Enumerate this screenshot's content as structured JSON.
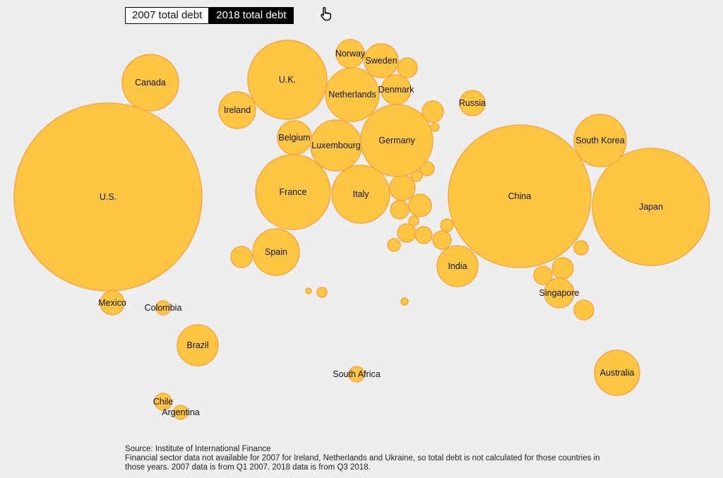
{
  "toggle": {
    "option_2007": "2007 total debt",
    "option_2018": "2018 total debt",
    "selected": "2018 total debt"
  },
  "icons": {
    "pointer": "pointing-hand-icon"
  },
  "colors": {
    "bubble_fill": "#fec642",
    "bubble_stroke": "#f8a642",
    "background": "#efeeee"
  },
  "footer": {
    "source": "Source: Institute of International Finance",
    "note": "Financial sector data not available for 2007 for Ireland, Netherlands and Ukraine, so total debt is not calculated for those countries in those years. 2007 data is from Q1 2007. 2018 data is from Q3 2018."
  },
  "chart_data": {
    "type": "bubble",
    "labeled_countries": [
      "U.S.",
      "Canada",
      "Mexico",
      "Colombia",
      "Brazil",
      "Chile",
      "Argentina",
      "U.K.",
      "Ireland",
      "Norway",
      "Sweden",
      "Denmark",
      "Netherlands",
      "Belgium",
      "Luxembourg",
      "Germany",
      "France",
      "Italy",
      "Spain",
      "Russia",
      "China",
      "Japan",
      "South Korea",
      "India",
      "Singapore",
      "Australia",
      "South Africa"
    ]
  }
}
